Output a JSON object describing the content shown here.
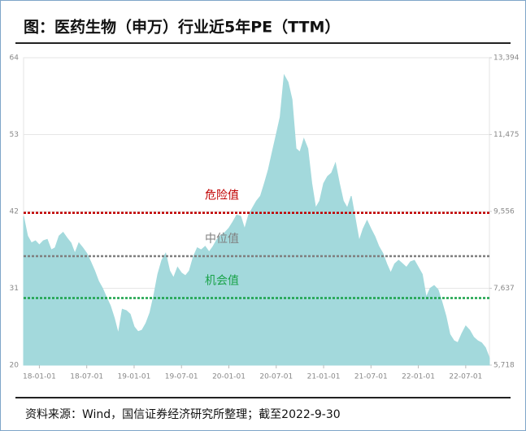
{
  "chart_data": {
    "type": "area",
    "title": "图：医药生物（申万）行业近5年PE（TTM）",
    "source": "资料来源：Wind，国信证券经济研究所整理；截至2022-9-30",
    "categories": [
      null,
      null,
      null,
      null,
      "18-01-01",
      null,
      null,
      null,
      null,
      null,
      null,
      null,
      null,
      null,
      null,
      null,
      "18-07-01",
      null,
      null,
      null,
      null,
      null,
      null,
      null,
      null,
      null,
      null,
      null,
      "19-01-01",
      null,
      null,
      null,
      null,
      null,
      null,
      null,
      null,
      null,
      null,
      null,
      "19-07-01",
      null,
      null,
      null,
      null,
      null,
      null,
      null,
      null,
      null,
      null,
      null,
      "20-01-01",
      null,
      null,
      null,
      null,
      null,
      null,
      null,
      null,
      null,
      null,
      null,
      "20-07-01",
      null,
      null,
      null,
      null,
      null,
      null,
      null,
      null,
      null,
      null,
      null,
      "21-01-01",
      null,
      null,
      null,
      null,
      null,
      null,
      null,
      null,
      null,
      null,
      null,
      "21-07-01",
      null,
      null,
      null,
      null,
      null,
      null,
      null,
      null,
      null,
      null,
      null,
      "22-01-01",
      null,
      null,
      null,
      null,
      null,
      null,
      null,
      null,
      null,
      null,
      null,
      "22-07-01",
      null,
      null,
      null,
      null,
      null,
      null
    ],
    "series": [
      {
        "color": "#a3d9dc",
        "values": [
          41.3,
          38.5,
          37.5,
          37.8,
          37.2,
          37.8,
          38,
          36.5,
          36.8,
          38.5,
          39,
          38.2,
          37.5,
          36,
          37.5,
          36.8,
          36,
          34.8,
          33.5,
          32,
          31,
          29.7,
          28.5,
          26.7,
          24.5,
          28,
          27.8,
          27.3,
          25.5,
          24.8,
          25,
          26,
          27.5,
          30,
          33,
          35,
          36,
          33.5,
          32.5,
          34,
          33.2,
          32.8,
          33.5,
          35.5,
          36.8,
          36.5,
          37,
          36.2,
          37,
          38,
          38.6,
          39,
          39.6,
          40.5,
          41.5,
          41.3,
          39.5,
          41.5,
          42.5,
          43.5,
          44.2,
          46,
          48,
          50.5,
          53,
          55.5,
          61.5,
          60.5,
          58,
          51,
          50.5,
          52.4,
          51,
          46,
          42.5,
          43.5,
          46,
          47,
          47.5,
          48.9,
          46,
          43.5,
          42.5,
          44.2,
          41,
          37.8,
          39.5,
          40.7,
          39.5,
          38.4,
          37,
          36,
          34.5,
          33.2,
          34.5,
          35,
          34.5,
          34,
          34.8,
          35,
          34,
          33,
          29.7,
          31,
          31.4,
          30.8,
          29,
          27,
          24.4,
          23.5,
          23.2,
          24.5,
          25.6,
          25,
          24,
          23.5,
          23.2,
          22.5,
          21
        ]
      }
    ],
    "reference_lines": [
      {
        "name": "危险值",
        "value": 41.8,
        "color": "#c00000"
      },
      {
        "name": "中位值",
        "value": 35.6,
        "color": "#7f7f7f"
      },
      {
        "name": "机会值",
        "value": 29.6,
        "color": "#1aa34a"
      }
    ],
    "ylim": [
      20,
      64
    ],
    "yticks": [
      20,
      31,
      42,
      53,
      64
    ],
    "y2lim": [
      5718,
      13394
    ],
    "y2ticks": [
      {
        "value": 5718,
        "label": "5,718"
      },
      {
        "value": 7637,
        "label": "7,637"
      },
      {
        "value": 9556,
        "label": "9,556"
      },
      {
        "value": 11475,
        "label": "11,475"
      },
      {
        "value": 13394,
        "label": "13,394"
      }
    ],
    "grid": true
  }
}
